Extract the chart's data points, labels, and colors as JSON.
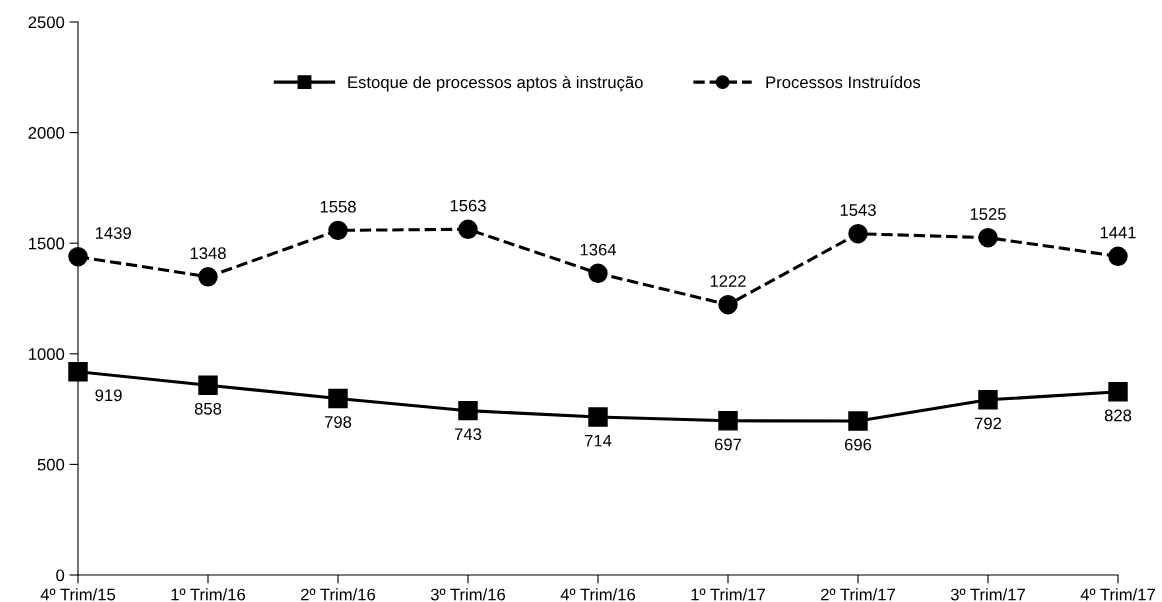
{
  "chart_data": {
    "type": "line",
    "categories": [
      "4º Trim/15",
      "1º Trim/16",
      "2º Trim/16",
      "3º Trim/16",
      "4º Trim/16",
      "1º Trim/17",
      "2º Trim/17",
      "3º Trim/17",
      "4º Trim/17"
    ],
    "series": [
      {
        "name": "Estoque de processos aptos à instrução",
        "color": "#000000",
        "marker": "square",
        "line_style": "solid",
        "values": [
          919,
          858,
          798,
          743,
          714,
          697,
          696,
          792,
          828
        ]
      },
      {
        "name": "Processos Instruídos",
        "color": "#000000",
        "marker": "circle",
        "line_style": "dashed",
        "values": [
          1439,
          1348,
          1558,
          1563,
          1364,
          1222,
          1543,
          1525,
          1441
        ]
      }
    ],
    "ylim": [
      0,
      2500
    ],
    "yticks": [
      0,
      500,
      1000,
      1500,
      2000,
      2500
    ],
    "grid": false,
    "legend": "top",
    "data_labels": true
  }
}
